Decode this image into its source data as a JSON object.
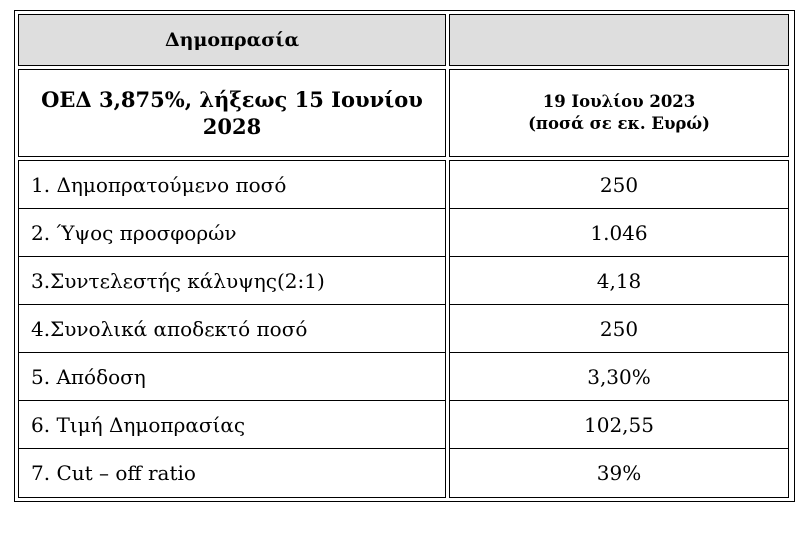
{
  "table": {
    "colors": {
      "header_bg": "#dedede",
      "border": "#000000",
      "text": "#000000"
    },
    "header": {
      "title": "Δημοπρασία"
    },
    "subheader": {
      "bond_name": "ΟΕΔ 3,875%, λήξεως 15 Ιουνίου 2028",
      "date_line1": "19 Ιουλίου 2023",
      "date_line2": "(ποσά σε εκ. Ευρώ)"
    },
    "rows": [
      {
        "label": "1. Δημοπρατούμενο ποσό",
        "value": "250"
      },
      {
        "label": "2. Ύψος προσφορών",
        "value": "1.046"
      },
      {
        "label": "3.Συντελεστής κάλυψης(2:1)",
        "value": "4,18"
      },
      {
        "label": "4.Συνολικά αποδεκτό ποσό",
        "value": "250"
      },
      {
        "label": "5. Απόδοση",
        "value": "3,30%"
      },
      {
        "label": "6. Τιμή Δημοπρασίας",
        "value": "102,55"
      },
      {
        "label": "7. Cut – off ratio",
        "value": "39%"
      }
    ]
  }
}
